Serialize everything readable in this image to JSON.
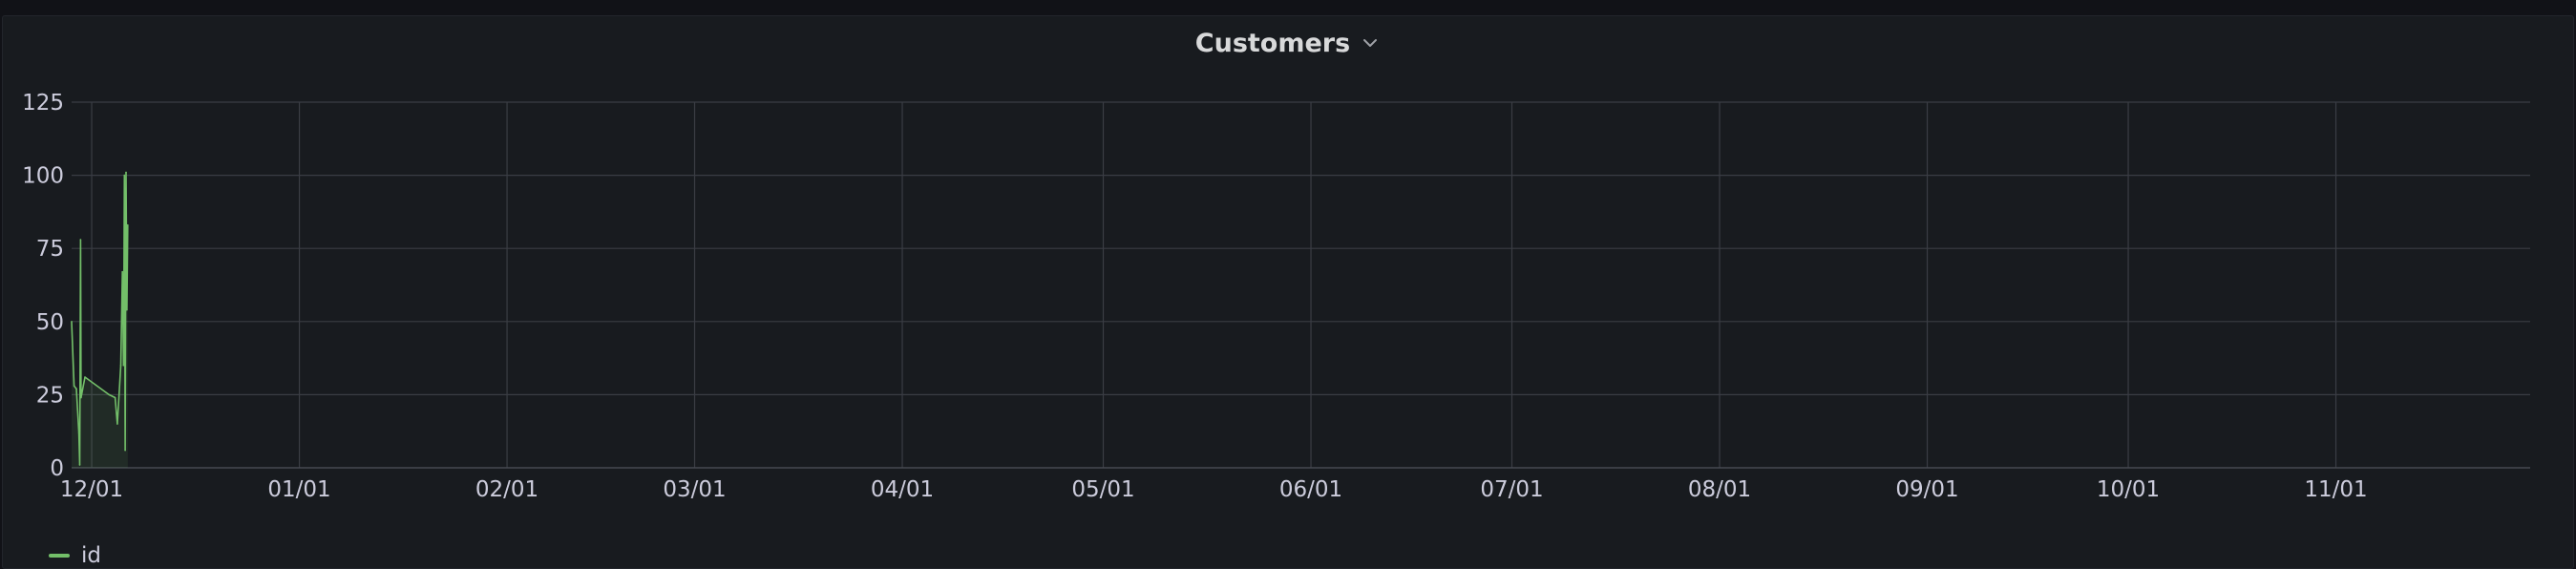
{
  "panel": {
    "title": "Customers"
  },
  "colors": {
    "series": "#73bf69",
    "grid": "#3a3d44",
    "background": "#181b1f"
  },
  "icons": {
    "title_menu": "chevron-down-icon"
  },
  "chart_data": {
    "type": "line",
    "title": "Customers",
    "xlabel": "",
    "ylabel": "",
    "ylim": [
      0,
      125
    ],
    "yticks": [
      "0",
      "25",
      "50",
      "75",
      "100",
      "125"
    ],
    "xlim": [
      "2022-11-28",
      "2023-11-30"
    ],
    "xticks": [
      {
        "label": "12/01",
        "date": "2022-12-01"
      },
      {
        "label": "01/01",
        "date": "2023-01-01"
      },
      {
        "label": "02/01",
        "date": "2023-02-01"
      },
      {
        "label": "03/01",
        "date": "2023-03-01"
      },
      {
        "label": "04/01",
        "date": "2023-04-01"
      },
      {
        "label": "05/01",
        "date": "2023-05-01"
      },
      {
        "label": "06/01",
        "date": "2023-06-01"
      },
      {
        "label": "07/01",
        "date": "2023-07-01"
      },
      {
        "label": "08/01",
        "date": "2023-08-01"
      },
      {
        "label": "09/01",
        "date": "2023-09-01"
      },
      {
        "label": "10/01",
        "date": "2023-10-01"
      },
      {
        "label": "11/01",
        "date": "2023-11-01"
      }
    ],
    "grid": true,
    "legend": "bottom-left",
    "series": [
      {
        "name": "id",
        "color": "#73bf69",
        "points": [
          {
            "x": "2022-11-28T00:00",
            "y": 50
          },
          {
            "x": "2022-11-28T09:00",
            "y": 28
          },
          {
            "x": "2022-11-28T17:00",
            "y": 27
          },
          {
            "x": "2022-11-29T02:00",
            "y": 12
          },
          {
            "x": "2022-11-29T05:00",
            "y": 1
          },
          {
            "x": "2022-11-29T08:00",
            "y": 78
          },
          {
            "x": "2022-11-29T10:00",
            "y": 24
          },
          {
            "x": "2022-11-30T00:00",
            "y": 31
          },
          {
            "x": "2022-12-03T14:00",
            "y": 25
          },
          {
            "x": "2022-12-04T12:00",
            "y": 24
          },
          {
            "x": "2022-12-04T20:00",
            "y": 15
          },
          {
            "x": "2022-12-05T08:00",
            "y": 35
          },
          {
            "x": "2022-12-05T14:00",
            "y": 67
          },
          {
            "x": "2022-12-05T18:00",
            "y": 35
          },
          {
            "x": "2022-12-05T21:00",
            "y": 100
          },
          {
            "x": "2022-12-06T00:00",
            "y": 6
          },
          {
            "x": "2022-12-06T03:00",
            "y": 101
          },
          {
            "x": "2022-12-06T06:00",
            "y": 54
          },
          {
            "x": "2022-12-06T09:00",
            "y": 83
          }
        ]
      }
    ]
  }
}
